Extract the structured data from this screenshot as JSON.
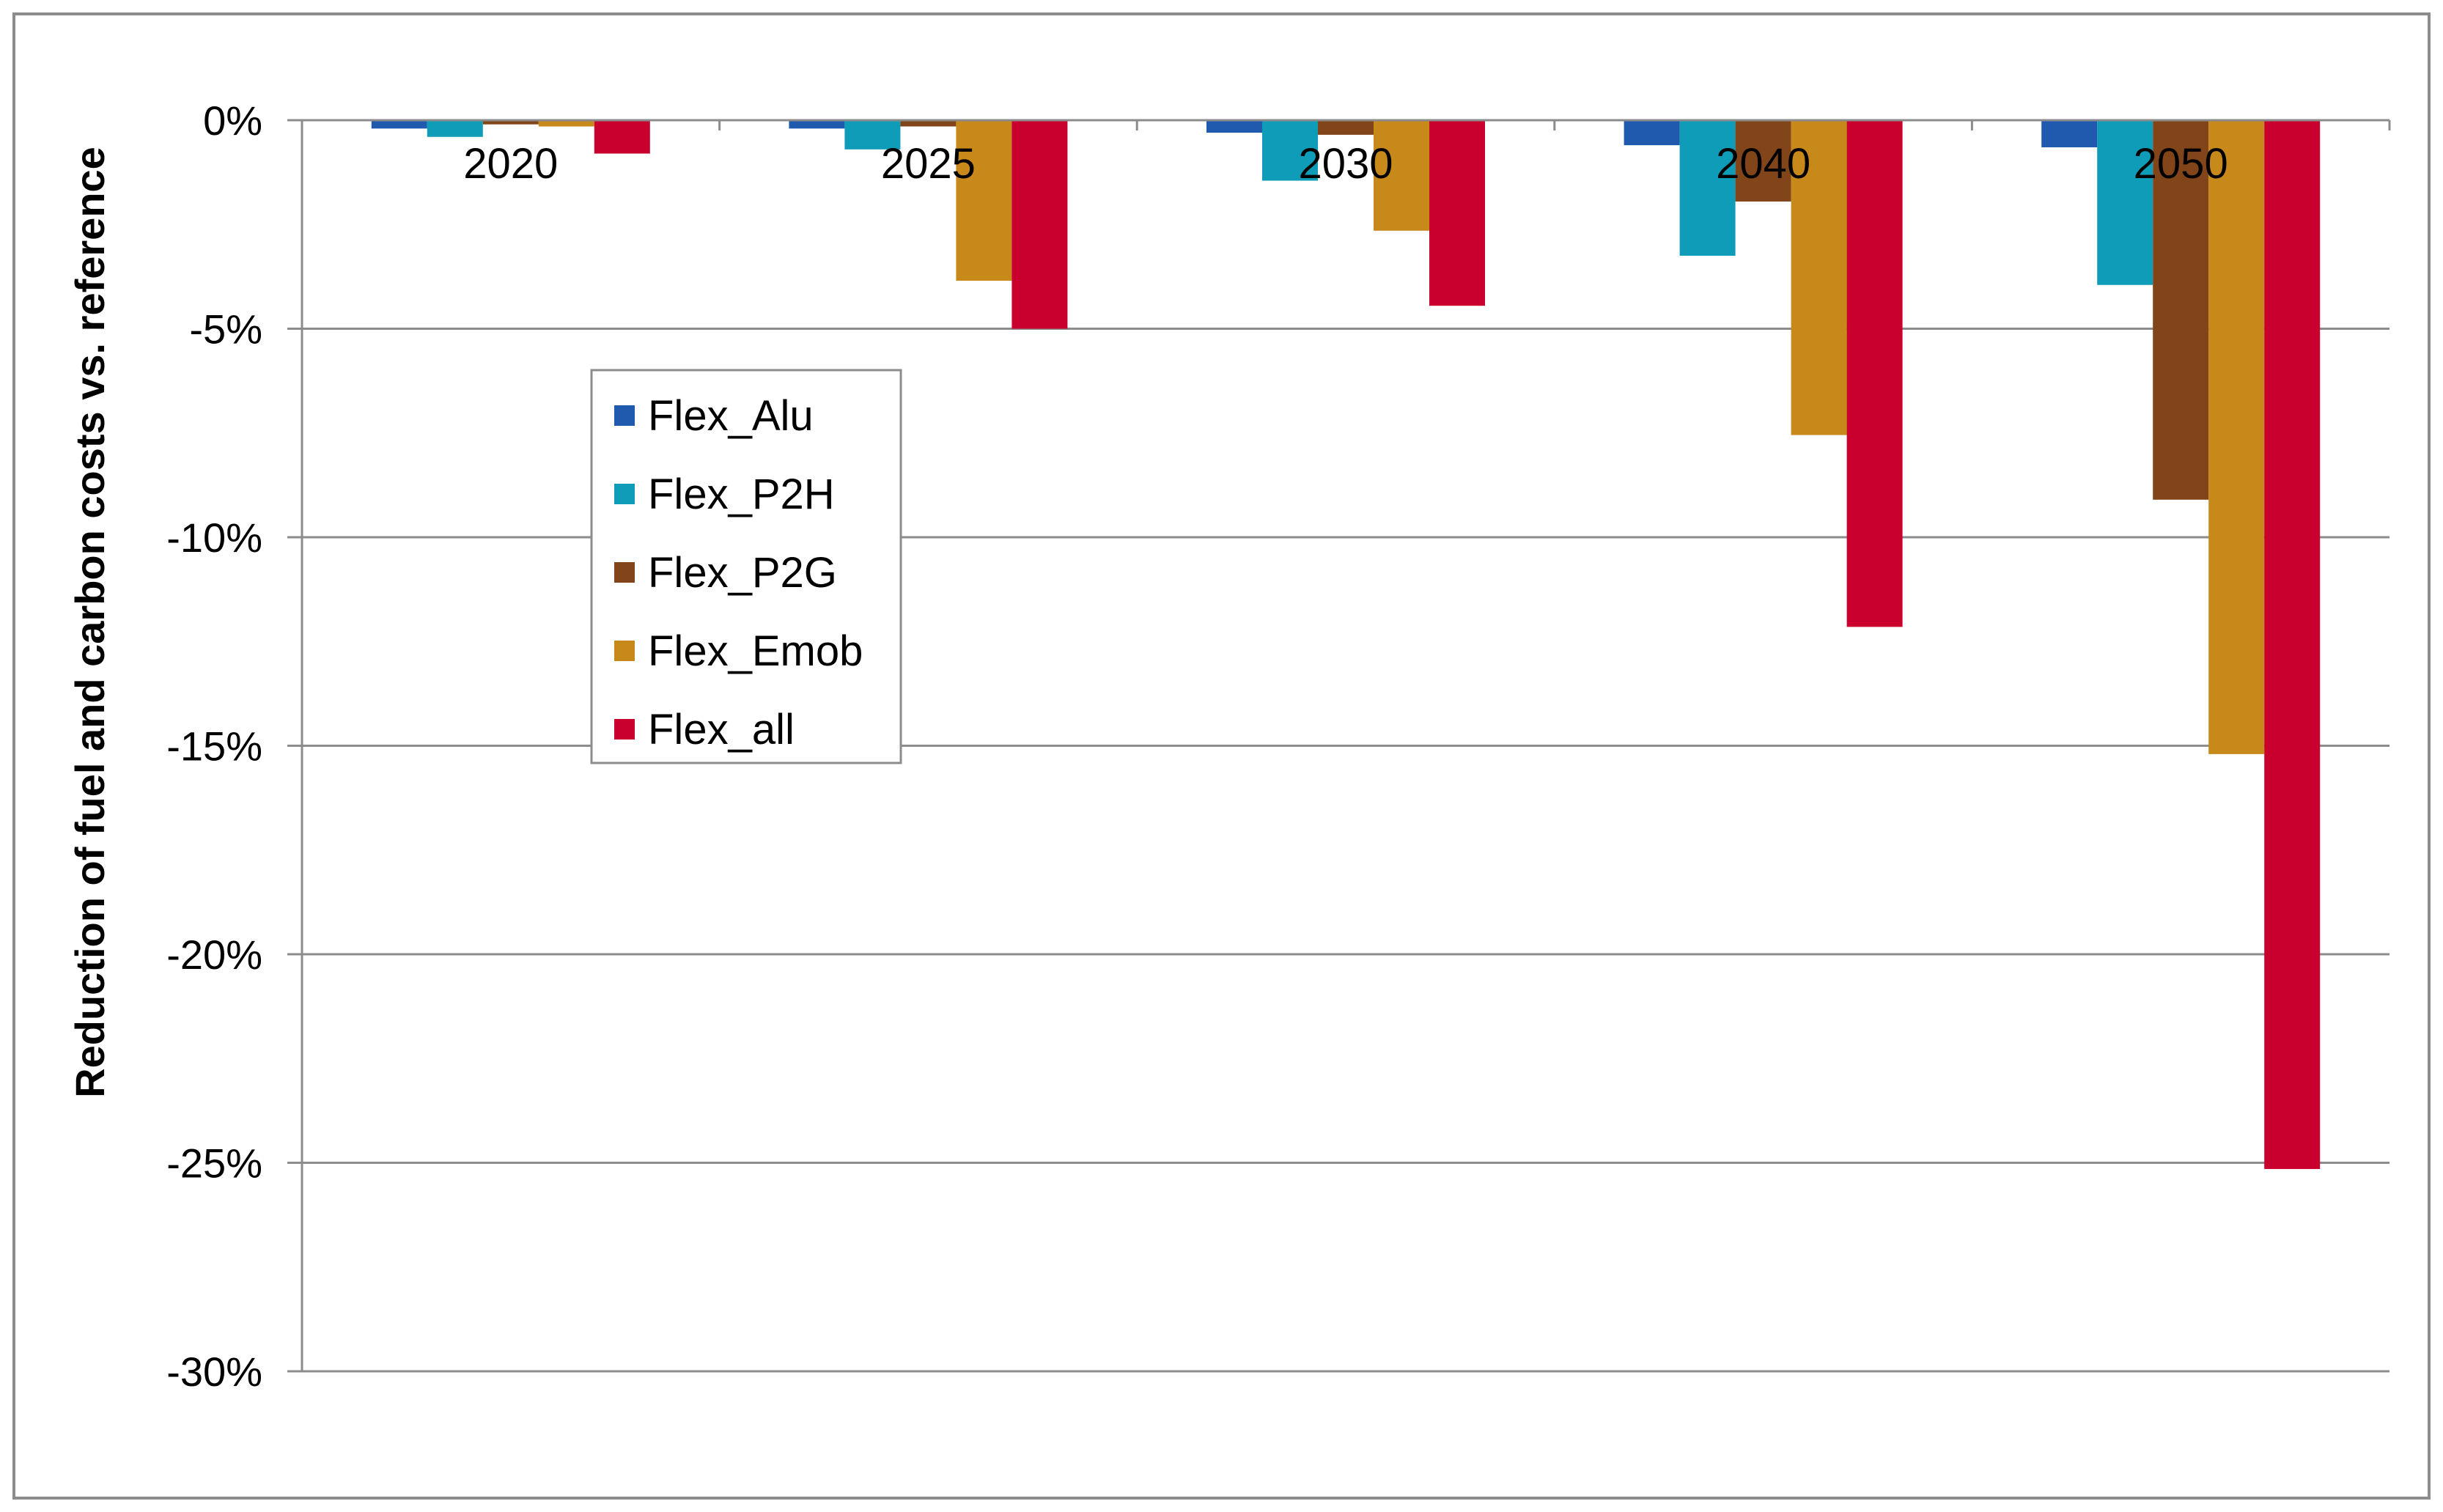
{
  "chart_data": {
    "type": "bar",
    "title": "",
    "xlabel": "",
    "ylabel": "Reduction of fuel and carbon costs vs. reference",
    "ylim": [
      -30,
      0
    ],
    "yticks": [
      0,
      -5,
      -10,
      -15,
      -20,
      -25,
      -30
    ],
    "ytick_labels": [
      "0%",
      "-5%",
      "-10%",
      "-15%",
      "-20%",
      "-25%",
      "-30%"
    ],
    "grid": true,
    "legend_position": "left-center",
    "categories": [
      "2020",
      "2025",
      "2030",
      "2040",
      "2050"
    ],
    "series": [
      {
        "name": "Flex_Alu",
        "color": "#1F5AAE",
        "values": [
          -0.2,
          -0.2,
          -0.3,
          -0.6,
          -0.65
        ]
      },
      {
        "name": "Flex_P2H",
        "color": "#0E9CB8",
        "values": [
          -0.4,
          -0.7,
          -1.45,
          -3.25,
          -3.95
        ]
      },
      {
        "name": "Flex_P2G",
        "color": "#82451A",
        "values": [
          -0.1,
          -0.15,
          -0.35,
          -1.95,
          -9.1
        ]
      },
      {
        "name": "Flex_Emob",
        "color": "#C8891B",
        "values": [
          -0.15,
          -3.85,
          -2.65,
          -7.55,
          -15.2
        ]
      },
      {
        "name": "Flex_all",
        "color": "#C9002E",
        "values": [
          -0.8,
          -5.0,
          -4.45,
          -12.15,
          -25.15
        ]
      }
    ]
  }
}
